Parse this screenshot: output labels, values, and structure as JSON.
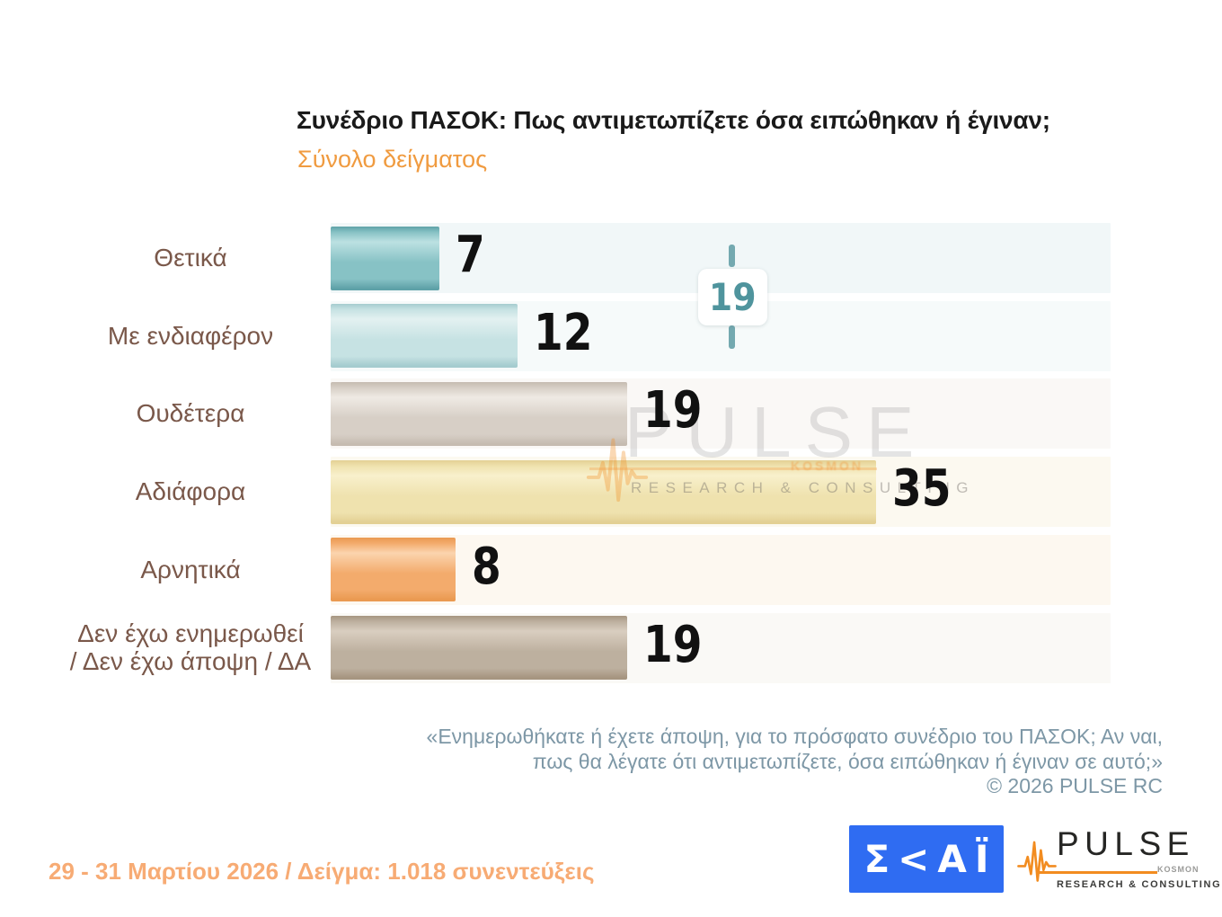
{
  "header": {
    "title": "Συνέδριο ΠΑΣΟΚ: Πως αντιμετωπίζετε όσα ειπώθηκαν ή έγιναν;",
    "subtitle": "Σύνολο δείγματος"
  },
  "chart_data": {
    "type": "bar",
    "orientation": "horizontal",
    "categories": [
      "Θετικά",
      "Με ενδιαφέρον",
      "Ουδέτερα",
      "Αδιάφορα",
      "Αρνητικά",
      "Δεν έχω ενημερωθεί\n/ Δεν έχω άποψη / ΔΑ"
    ],
    "values": [
      7,
      12,
      19,
      35,
      8,
      19
    ],
    "xlim": [
      0,
      50
    ],
    "grid": false,
    "value_labels": "outside-end",
    "annotation": {
      "value": "19",
      "meaning": "Θετικά + Με ενδιαφέρον",
      "color": "#4f949d"
    },
    "styles": [
      {
        "edge": "#5fa2a8",
        "base": "#87c2c5",
        "highlight": "#bce1e2",
        "track": "#f1f7f8"
      },
      {
        "edge": "#a5cccf",
        "base": "#c6e2e3",
        "highlight": "#e3f1f1",
        "track": "#f6fafa"
      },
      {
        "edge": "#c5bbb0",
        "base": "#d7cfc6",
        "highlight": "#efeae4",
        "track": "#faf8f6"
      },
      {
        "edge": "#e3d094",
        "base": "#efe2ae",
        "highlight": "#f8f0cc",
        "track": "#fcf9f0"
      },
      {
        "edge": "#ea9a51",
        "base": "#f3ab6c",
        "highlight": "#fbd4ae",
        "track": "#fdf8f0"
      },
      {
        "edge": "#a69580",
        "base": "#bdb09f",
        "highlight": "#d9cec0",
        "track": "#faf9f6"
      }
    ],
    "label_color": "#7a584a",
    "value_color": "#111111"
  },
  "watermark": {
    "brand": "PULSE",
    "kosmon": "KOSMON",
    "tagline": "RESEARCH & CONSULTING"
  },
  "footnote": {
    "lines": [
      "«Ενημερωθήκατε ή έχετε άποψη, για το πρόσφατο συνέδριο του ΠΑΣΟΚ; Αν ναι,",
      "πως θα λέγατε ότι αντιμετωπίζετε, όσα ειπώθηκαν ή έγιναν σε αυτό;»",
      "©  2026  PULSE RC"
    ]
  },
  "footer": {
    "fieldwork": "29 - 31  Μαρτίου 2026  /  Δείγμα:  1.018 συνεντεύξεις",
    "skai_logo_text": "Σ<ΑΪ",
    "pulse_brand": "PULSE",
    "pulse_kosmon": "KOSMON",
    "pulse_tagline": "RESEARCH & CONSULTING",
    "skai_blue": "#2f6cf2",
    "pulse_orange": "#f28c20"
  }
}
